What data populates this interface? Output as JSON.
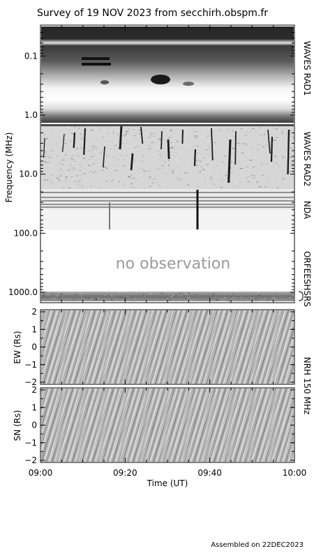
{
  "title": "Survey of 19 NOV 2023 from secchirh.obspm.fr",
  "footer": "Assembled on 22DEC2023",
  "chart_data": [
    {
      "type": "heatmap",
      "name": "spectrogram",
      "ylabel": "Frequency (MHz)",
      "yscale": "log",
      "ylim": [
        0.03,
        1500
      ],
      "y_ticks": [
        {
          "value": 0.1,
          "label": "0.1"
        },
        {
          "value": 1,
          "label": "1.0"
        },
        {
          "value": 10,
          "label": "10.0"
        },
        {
          "value": 100,
          "label": "100.0"
        },
        {
          "value": 1000,
          "label": "1000.0"
        }
      ],
      "bands": [
        {
          "label": "WAVES RAD1",
          "range_mhz": [
            0.03,
            1
          ]
        },
        {
          "label": "WAVES RAD2",
          "range_mhz": [
            1,
            14
          ]
        },
        {
          "label": "NDA",
          "range_mhz": [
            14,
            100
          ]
        },
        {
          "label": "ORFEES",
          "range_mhz": [
            100,
            1000
          ]
        },
        {
          "label": "HSRS",
          "range_mhz": [
            1000,
            1500
          ]
        }
      ],
      "annotation": "no observation",
      "colormap": "grayscale"
    },
    {
      "type": "heatmap",
      "name": "nrh-ew",
      "ylabel": "EW (Rs)",
      "ylim": [
        -2,
        2
      ],
      "y_ticks": [
        {
          "value": 2,
          "label": "2"
        },
        {
          "value": 1,
          "label": "1"
        },
        {
          "value": 0,
          "label": "0"
        },
        {
          "value": -1,
          "label": "−1"
        },
        {
          "value": -2,
          "label": "−2"
        }
      ],
      "colormap": "grayscale"
    },
    {
      "type": "heatmap",
      "name": "nrh-sn",
      "ylabel": "SN (Rs)",
      "ylim": [
        -2,
        2
      ],
      "y_ticks": [
        {
          "value": 2,
          "label": "2"
        },
        {
          "value": 1,
          "label": "1"
        },
        {
          "value": 0,
          "label": "0"
        },
        {
          "value": -1,
          "label": "−1"
        },
        {
          "value": -2,
          "label": "−2"
        }
      ],
      "colormap": "grayscale"
    }
  ],
  "nrh_band_label": "NRH 150 MHz",
  "x_axis": {
    "xlabel": "Time (UT)",
    "xlim": [
      "09:00",
      "10:00"
    ],
    "ticks": [
      "09:00",
      "09:20",
      "09:40",
      "10:00"
    ]
  }
}
